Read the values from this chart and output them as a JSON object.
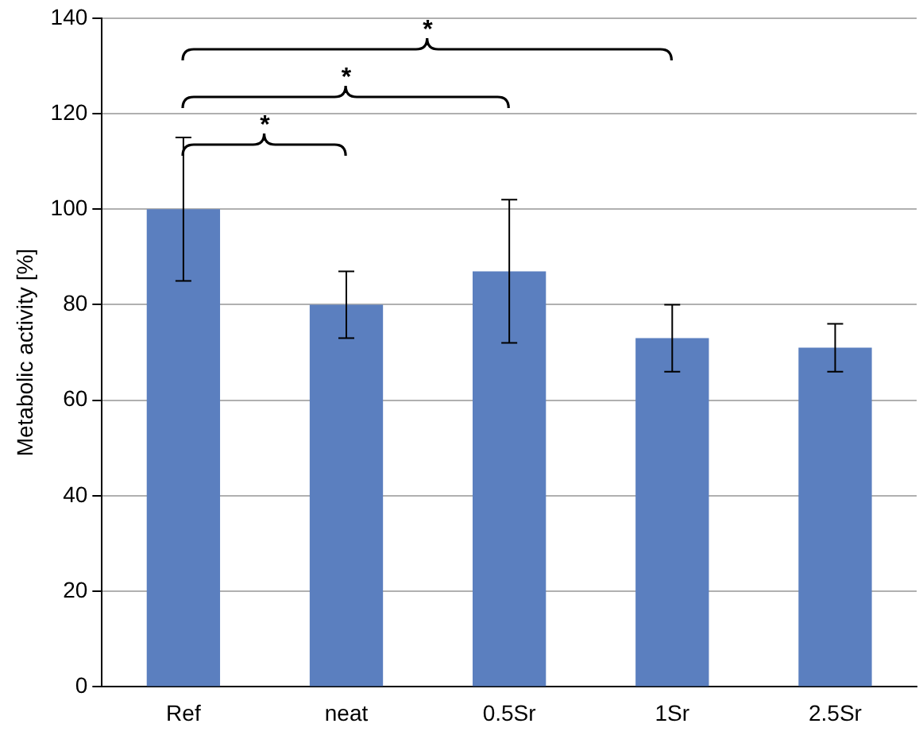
{
  "chart_data": {
    "type": "bar",
    "ylabel": "Metabolic activity [%]",
    "categories": [
      "Ref",
      "neat",
      "0.5Sr",
      "1Sr",
      "2.5Sr"
    ],
    "values": [
      100,
      80,
      87,
      73,
      71
    ],
    "errors": [
      15,
      7,
      15,
      7,
      5
    ],
    "color": "#5b7fbf",
    "ylim": [
      0,
      140
    ],
    "yticks": [
      0,
      20,
      40,
      60,
      80,
      100,
      120,
      140
    ],
    "grid": "y",
    "annotations": [
      "*",
      "*",
      "*"
    ]
  }
}
